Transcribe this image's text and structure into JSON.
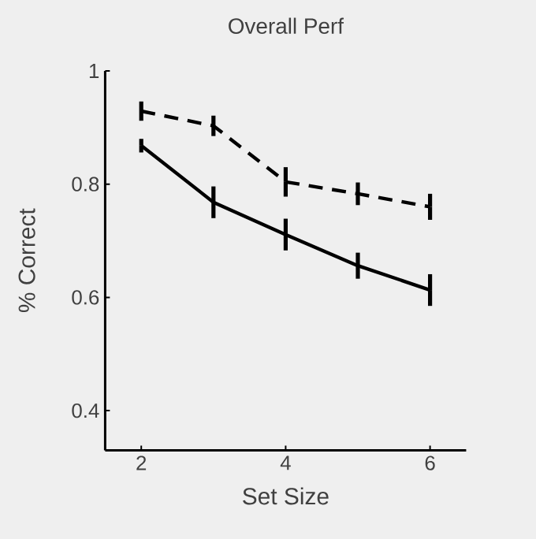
{
  "chart_data": {
    "type": "line",
    "title": "Overall Perf",
    "xlabel": "Set Size",
    "ylabel": "% Correct",
    "x": [
      2,
      3,
      4,
      5,
      6
    ],
    "xlim": [
      1.5,
      6.5
    ],
    "xticks": [
      2,
      4,
      6
    ],
    "ylim": [
      0.33,
      1
    ],
    "yticks": [
      0.4,
      0.6,
      0.8,
      1
    ],
    "marker": "none",
    "grid": false,
    "series": [
      {
        "color": "#000000",
        "line_style": "solid",
        "values": [
          0.868,
          0.768,
          0.711,
          0.656,
          0.613
        ],
        "errors": [
          0.012,
          0.028,
          0.028,
          0.023,
          0.028
        ]
      },
      {
        "color": "#000000",
        "line_style": "dashed",
        "values": [
          0.929,
          0.903,
          0.804,
          0.783,
          0.76
        ],
        "errors": [
          0.017,
          0.018,
          0.026,
          0.02,
          0.023
        ]
      }
    ]
  }
}
